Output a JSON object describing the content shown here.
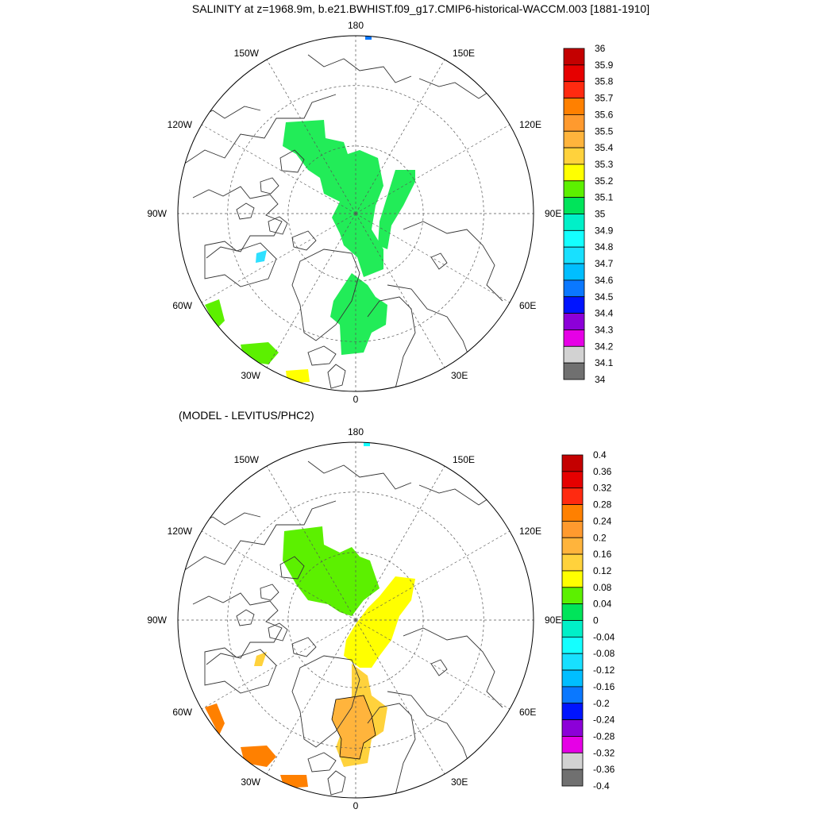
{
  "figure": {
    "title": "SALINITY at z=1968.9m, b.e21.BWHIST.f09_g17.CMIP6-historical-WACCM.003 [1881-1910]",
    "diff_subtitle": "(MODEL - LEVITUS/PHC2)"
  },
  "longitude_labels": [
    "180",
    "150E",
    "120E",
    "90E",
    "60E",
    "30E",
    "0",
    "30W",
    "60W",
    "90W",
    "120W",
    "150W"
  ],
  "colorbars": {
    "top": {
      "name": "salinity",
      "levels": [
        "36",
        "35.9",
        "35.8",
        "35.7",
        "35.6",
        "35.5",
        "35.4",
        "35.3",
        "35.2",
        "35.1",
        "35",
        "34.9",
        "34.8",
        "34.7",
        "34.6",
        "34.5",
        "34.4",
        "34.3",
        "34.2",
        "34.1",
        "34"
      ],
      "colors": [
        "#c40000",
        "#e60000",
        "#ff2a10",
        "#ff8000",
        "#ff9a2e",
        "#ffb43c",
        "#ffd23c",
        "#ffff00",
        "#5cf000",
        "#00e45a",
        "#00f0c8",
        "#14ffff",
        "#18e0ff",
        "#00beff",
        "#0a78ff",
        "#0014ff",
        "#8c00d8",
        "#e600e6",
        "#d2d2d2",
        "#707070"
      ]
    },
    "bottom": {
      "name": "difference",
      "levels": [
        "0.4",
        "0.36",
        "0.32",
        "0.28",
        "0.24",
        "0.2",
        "0.16",
        "0.12",
        "0.08",
        "0.04",
        "0",
        "-0.04",
        "-0.08",
        "-0.12",
        "-0.16",
        "-0.2",
        "-0.24",
        "-0.28",
        "-0.32",
        "-0.36",
        "-0.4"
      ],
      "colors": [
        "#c40000",
        "#e60000",
        "#ff2a10",
        "#ff8000",
        "#ff9a2e",
        "#ffb43c",
        "#ffd23c",
        "#ffff00",
        "#5cf000",
        "#00e45a",
        "#00f0c8",
        "#14ffff",
        "#18e0ff",
        "#00beff",
        "#0a78ff",
        "#0014ff",
        "#8c00d8",
        "#e600e6",
        "#d2d2d2",
        "#707070"
      ]
    }
  },
  "map_fields": {
    "top_fill_colors": {
      "arctic_basin": "#22ec58",
      "norwegian_sea": "#22ec58",
      "labrador_sea": "#5cf000",
      "north_atlantic": "#5cf000",
      "greenland_patch": "#2ee0ff",
      "iceland_south": "#ffff00",
      "bering_spot": "#0a78ff"
    },
    "bottom_fill_colors": {
      "canada_basin": "#5cf000",
      "eurasian_basin": "#ffff00",
      "fram_strait": "#ffd23c",
      "norwegian_sea": "#ffb43c",
      "labrador_sea": "#ff8000",
      "north_atlantic": "#ff8000",
      "greenland_patch": "#ffd23c",
      "bering_spot": "#14ffff"
    }
  }
}
